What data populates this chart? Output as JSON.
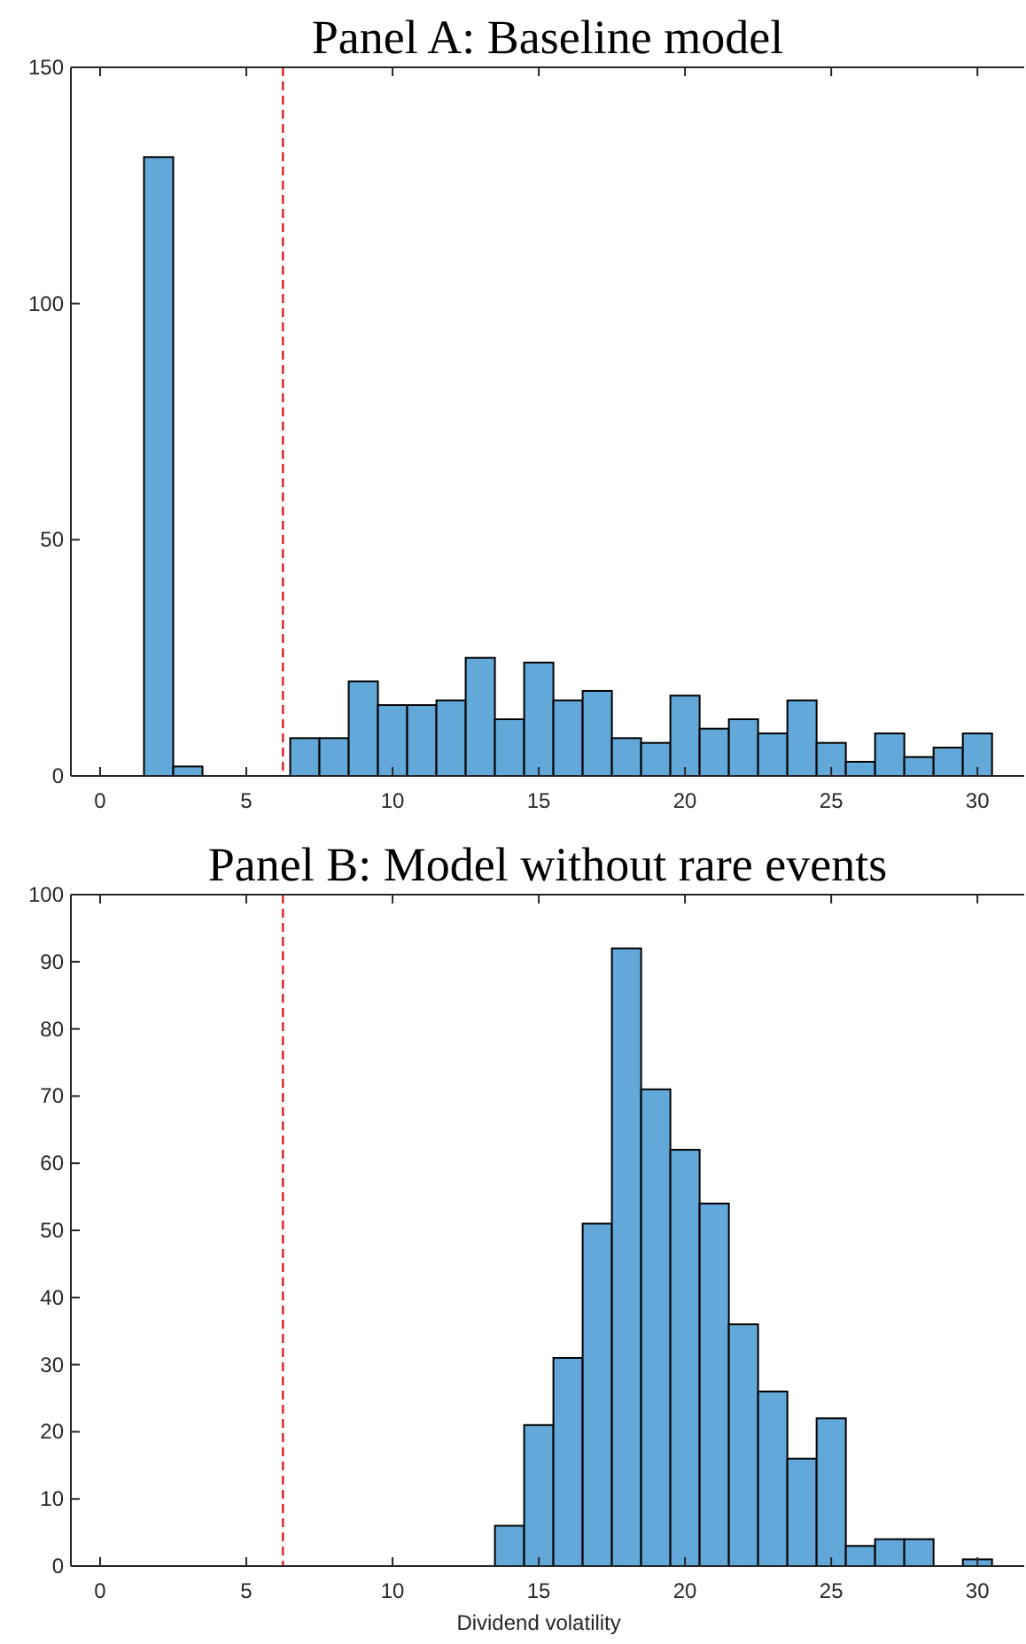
{
  "chart_data": [
    {
      "type": "histogram",
      "title": "Panel A: Baseline model",
      "bins": [
        0.5,
        1.5,
        2.5,
        3.5,
        4.5,
        5.5,
        6.5,
        7.5,
        8.5,
        9.5,
        10.5,
        11.5,
        12.5,
        13.5,
        14.5,
        15.5,
        16.5,
        17.5,
        18.5,
        19.5,
        20.5,
        21.5,
        22.5,
        23.5,
        24.5,
        25.5,
        26.5,
        27.5,
        28.5,
        29.5,
        30.5
      ],
      "values": [
        0,
        131,
        2,
        0,
        0,
        0,
        8,
        8,
        20,
        15,
        15,
        16,
        25,
        12,
        24,
        16,
        18,
        8,
        7,
        17,
        10,
        12,
        9,
        16,
        7,
        3,
        9,
        4,
        6,
        9
      ],
      "color": "#62a8d9",
      "xlim": [
        -1,
        31.6
      ],
      "ylim": [
        0,
        150
      ],
      "xticks": [
        0,
        5,
        10,
        15,
        20,
        25,
        30
      ],
      "yticks": [
        0,
        50,
        100,
        150
      ],
      "ref_lines": [
        {
          "axis": "x",
          "value": 6.25,
          "color": "#e02020",
          "line_style": "dashed"
        }
      ],
      "grid": false
    },
    {
      "type": "histogram",
      "title": "Panel B: Model without rare events",
      "xlabel": "Dividend volatility",
      "bins": [
        0.5,
        1.5,
        2.5,
        3.5,
        4.5,
        5.5,
        6.5,
        7.5,
        8.5,
        9.5,
        10.5,
        11.5,
        12.5,
        13.5,
        14.5,
        15.5,
        16.5,
        17.5,
        18.5,
        19.5,
        20.5,
        21.5,
        22.5,
        23.5,
        24.5,
        25.5,
        26.5,
        27.5,
        28.5,
        29.5,
        30.5
      ],
      "values": [
        0,
        0,
        0,
        0,
        0,
        0,
        0,
        0,
        0,
        0,
        0,
        0,
        0,
        6,
        21,
        31,
        51,
        92,
        71,
        62,
        54,
        36,
        26,
        16,
        22,
        3,
        4,
        4,
        0,
        1
      ],
      "color": "#62a8d9",
      "xlim": [
        -1,
        31.6
      ],
      "ylim": [
        0,
        100
      ],
      "xticks": [
        0,
        5,
        10,
        15,
        20,
        25,
        30
      ],
      "yticks": [
        0,
        10,
        20,
        30,
        40,
        50,
        60,
        70,
        80,
        90,
        100
      ],
      "ref_lines": [
        {
          "axis": "x",
          "value": 6.25,
          "color": "#e02020",
          "line_style": "dashed"
        }
      ],
      "grid": false
    }
  ]
}
